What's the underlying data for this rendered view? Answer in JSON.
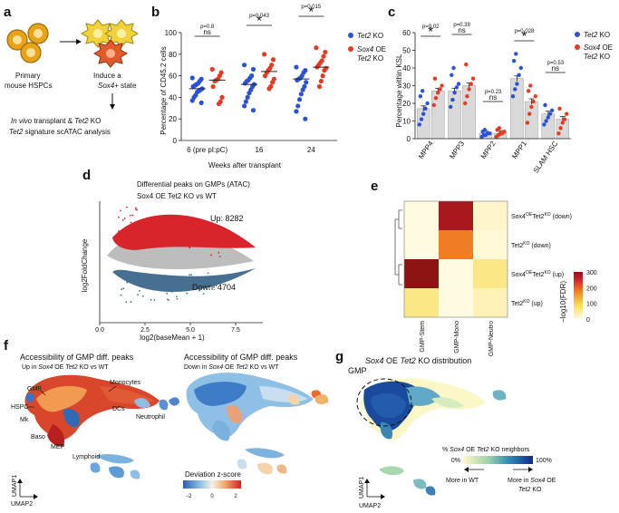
{
  "panel_labels": {
    "a": "a",
    "b": "b",
    "c": "c",
    "d": "d",
    "e": "e",
    "f": "f",
    "g": "g"
  },
  "colors": {
    "blue": "#2b52d6",
    "red": "#e63a22",
    "grey": "#bdbdbd",
    "up_red": "#d8252b",
    "down_blue": "#466f92",
    "orange": "#e8901f",
    "yellow": "#f2d437"
  },
  "panel_a": {
    "primary": "Primary",
    "mouse": "mouse HSPCs",
    "induce": "Induce a",
    "state_italic": "Sox4",
    "state_rest": "+ state",
    "line1_italic": "In vivo",
    "line1_mid": " transplant & ",
    "line1_italic2": "Tet2",
    "line1_rest": " KO",
    "line2_italic": "Tet2",
    "line2_rest": " signature scATAC analysis"
  },
  "chart_data": [
    {
      "id": "b",
      "type": "scatter",
      "ylabel": "Percentage of CD45.2 cells",
      "xlabel": "Weeks after transplant",
      "ylim": [
        0,
        100
      ],
      "yticks": [
        0,
        20,
        40,
        60,
        80,
        100
      ],
      "categories": [
        "6 (pre pI:pC)",
        "16",
        "24"
      ],
      "legend": [
        {
          "name": "Tet2",
          "suffix": " KO",
          "color": "#2b52d6"
        },
        {
          "name": "Sox4",
          "suffix": " OE",
          "line2": "Tet2",
          "line2_suffix": " KO",
          "color": "#e63a22"
        }
      ],
      "series": [
        {
          "name": "Tet2 KO",
          "color": "#2b52d6",
          "means": [
            48,
            52,
            57
          ],
          "values": [
            [
              58,
              57,
              55,
              53,
              52,
              51,
              50,
              48,
              47,
              46,
              45,
              42,
              40,
              37,
              35
            ],
            [
              70,
              66,
              60,
              58,
              56,
              55,
              53,
              52,
              50,
              47,
              44,
              40,
              36,
              32,
              28
            ],
            [
              68,
              65,
              63,
              60,
              58,
              57,
              56,
              54,
              50,
              47,
              43,
              38,
              32,
              27,
              20
            ]
          ]
        },
        {
          "name": "Sox4 OE Tet2 KO",
          "color": "#e63a22",
          "means": [
            56,
            64,
            68
          ],
          "values": [
            [
              66,
              63,
              60,
              57,
              56,
              55,
              50,
              40,
              36,
              34
            ],
            [
              80,
              75,
              70,
              67,
              65,
              63,
              60,
              57,
              54,
              50,
              48
            ],
            [
              86,
              82,
              78,
              74,
              72,
              70,
              68,
              67,
              65,
              60,
              55,
              50
            ]
          ]
        }
      ],
      "significance": [
        {
          "p": "p=0.8",
          "mark": "ns"
        },
        {
          "p": "p=0.043",
          "mark": "*"
        },
        {
          "p": "p=0.015",
          "mark": "*"
        }
      ]
    },
    {
      "id": "c",
      "type": "bar",
      "ylabel": "Percentage within KSL",
      "ylim": [
        0,
        60
      ],
      "yticks": [
        0,
        10,
        20,
        30,
        40,
        50,
        60
      ],
      "categories": [
        "MPP4",
        "MPP3",
        "MPP2",
        "MPP1",
        "SLAM HSC"
      ],
      "legend": [
        {
          "name": "Tet2",
          "suffix": " KO",
          "color": "#2b52d6"
        },
        {
          "name": "Sox4",
          "suffix": " OE",
          "line2": "Tet2",
          "line2_suffix": " KO",
          "color": "#e63a22"
        }
      ],
      "series": [
        {
          "name": "Tet2 KO",
          "color": "#2b52d6",
          "values": [
            17,
            27,
            3,
            34,
            14
          ],
          "points": [
            [
              8,
              11,
              14,
              17,
              20,
              24,
              27
            ],
            [
              18,
              22,
              26,
              29,
              31,
              36,
              40
            ],
            [
              1,
              2,
              2,
              3,
              3,
              4,
              5
            ],
            [
              24,
              28,
              31,
              36,
              40,
              44,
              48
            ],
            [
              8,
              10,
              12,
              14,
              16,
              19
            ]
          ]
        },
        {
          "name": "Sox4 OE Tet2 KO",
          "color": "#e63a22",
          "values": [
            27,
            30,
            3,
            21,
            11
          ],
          "points": [
            [
              19,
              23,
              26,
              28,
              30,
              34
            ],
            [
              20,
              24,
              28,
              31,
              34,
              42
            ],
            [
              1,
              2,
              3,
              3,
              4,
              5,
              6
            ],
            [
              9,
              14,
              18,
              21,
              24,
              27,
              30
            ],
            [
              3,
              6,
              9,
              11,
              14,
              17
            ]
          ]
        }
      ],
      "significance": [
        {
          "p": "p=0.02",
          "mark": "*"
        },
        {
          "p": "p=0.39",
          "mark": "ns"
        },
        {
          "p": "p=0.23",
          "mark": "ns"
        },
        {
          "p": "p=0.028",
          "mark": "*"
        },
        {
          "p": "p=0.53",
          "mark": "ns"
        }
      ]
    },
    {
      "id": "d",
      "type": "scatter",
      "title_line1": "Differential peaks on GMPs (ATAC)",
      "title_line2": "Sox4 OE Tet2 KO vs WT",
      "xlabel": "log2(baseMean + 1)",
      "ylabel": "log2FoldChange",
      "xlim": [
        0,
        9
      ],
      "ylim": [
        -5,
        5
      ],
      "xticks": [
        0.0,
        2.5,
        5.0,
        7.5
      ],
      "up_label": "Up: 8282",
      "down_label": "Down: 4704",
      "up_count": 8282,
      "down_count": 4704
    },
    {
      "id": "e",
      "type": "heatmap",
      "rows": [
        "Sox4OETet2KO (down)",
        "Tet2KO (down)",
        "Sox4OETet2KO (up)",
        "Tet2KO (up)"
      ],
      "row_labels": [
        {
          "a": "Sox4",
          "sup1": "OE",
          "b": "Tet2",
          "sup2": "KO",
          "c": " (down)"
        },
        {
          "a": "Tet2",
          "sup1": "KO",
          "b": "",
          "sup2": "",
          "c": " (down)"
        },
        {
          "a": "Sox4",
          "sup1": "OE",
          "b": "Tet2",
          "sup2": "KO",
          "c": " (up)"
        },
        {
          "a": "Tet2",
          "sup1": "KO",
          "b": "",
          "sup2": "",
          "c": " (up)"
        }
      ],
      "columns": [
        "GMP-Stem",
        "GMP-Mono",
        "GMP-Neutro"
      ],
      "values": [
        [
          5,
          280,
          20
        ],
        [
          5,
          180,
          10
        ],
        [
          300,
          5,
          60
        ],
        [
          60,
          5,
          30
        ]
      ],
      "colorbar_label": "−log10(FDR)",
      "colorbar_ticks": [
        300,
        200,
        100,
        0
      ],
      "vmax": 300
    }
  ],
  "panel_f": {
    "title1": "Accessibility of GMP diff. peaks",
    "sub1_pre": "Up in ",
    "sub1_it": "Sox4",
    "sub1_mid": " OE ",
    "sub1_it2": "Tet2",
    "sub1_post": " KO vs WT",
    "title2": "Accessibility of GMP diff. peaks",
    "sub2_pre": "Down in ",
    "sub2_it": "Sox4",
    "sub2_mid": " OE ",
    "sub2_it2": "Tet2",
    "sub2_post": " KO vs WT",
    "labels": {
      "gmp": "GMP",
      "monocytes": "Monocytes",
      "hspc": "HSPC",
      "dcs": "DCs",
      "neutrophil": "Neutrophil",
      "mk": "Mk",
      "baso": "Baso",
      "mep": "MEP",
      "lymphoid": "Lymphoid"
    },
    "umap1": "UMAP1",
    "umap2": "UMAP2",
    "colorbar_title": "Deviation z-score",
    "colorbar_ticks": [
      "−2",
      "0",
      "2"
    ]
  },
  "panel_g": {
    "title_it1": "Sox4",
    "title_mid": " OE ",
    "title_it2": "Tet2",
    "title_post": " KO distribution",
    "gmp": "GMP",
    "legend_pre": "% ",
    "legend_it1": "Sox4",
    "legend_mid": " OE ",
    "legend_it2": "Tet2",
    "legend_post": " KO neighbors",
    "legend_min": "0%",
    "legend_max": "100%",
    "more_wt": "More in WT",
    "more_sox4_pre": "More in ",
    "more_sox4_it": "Sox4",
    "more_sox4_post": " OE",
    "more_sox4_line2_it": "Tet2",
    "more_sox4_line2_post": " KO",
    "umap1": "UMAP1",
    "umap2": "UMAP2"
  }
}
